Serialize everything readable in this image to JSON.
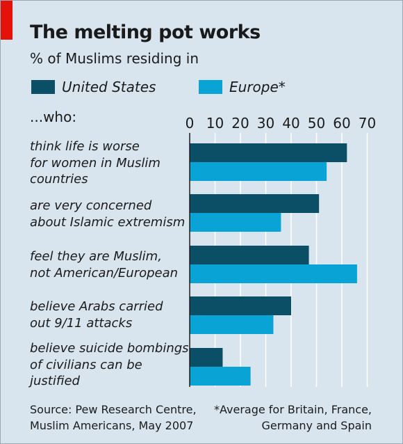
{
  "header": {
    "title": "The melting pot works",
    "subtitle": "% of Muslims residing in"
  },
  "legend": {
    "us_label": "United States",
    "europe_label": "Europe*"
  },
  "colors": {
    "us": "#0b4f66",
    "europe": "#0aa3d6",
    "background": "#d8e5ee",
    "accent": "#e3120b"
  },
  "who_label": "...who:",
  "chart_data": {
    "type": "bar",
    "orientation": "horizontal",
    "title": "The melting pot works",
    "subtitle": "% of Muslims residing in",
    "categories": [
      "think life is worse for women in Muslim countries",
      "are very concerned about Islamic extremism",
      "feel they are Muslim, not American/European",
      "believe Arabs carried out 9/11 attacks",
      "believe suicide bombings of civilians can be justified"
    ],
    "series": [
      {
        "name": "United States",
        "values": [
          62,
          51,
          47,
          40,
          13
        ]
      },
      {
        "name": "Europe*",
        "values": [
          54,
          36,
          66,
          33,
          24
        ]
      }
    ],
    "xlim": [
      0,
      70
    ],
    "ticks": [
      "0",
      "10",
      "20",
      "30",
      "40",
      "50",
      "60",
      "70"
    ],
    "grid": true,
    "legend_position": "top"
  },
  "category_labels": [
    "think life is worse\nfor women in Muslim\ncountries",
    "are very concerned\nabout Islamic extremism",
    "feel they are Muslim,\nnot American/European",
    "believe Arabs carried\nout 9/11 attacks",
    "believe suicide bombings\nof civilians can be\njustified"
  ],
  "footer": {
    "source_line1": "Source: Pew Research Centre,",
    "source_line2": "Muslim Americans, May 2007",
    "note_line1": "*Average for Britain, France,",
    "note_line2": "Germany and Spain"
  }
}
